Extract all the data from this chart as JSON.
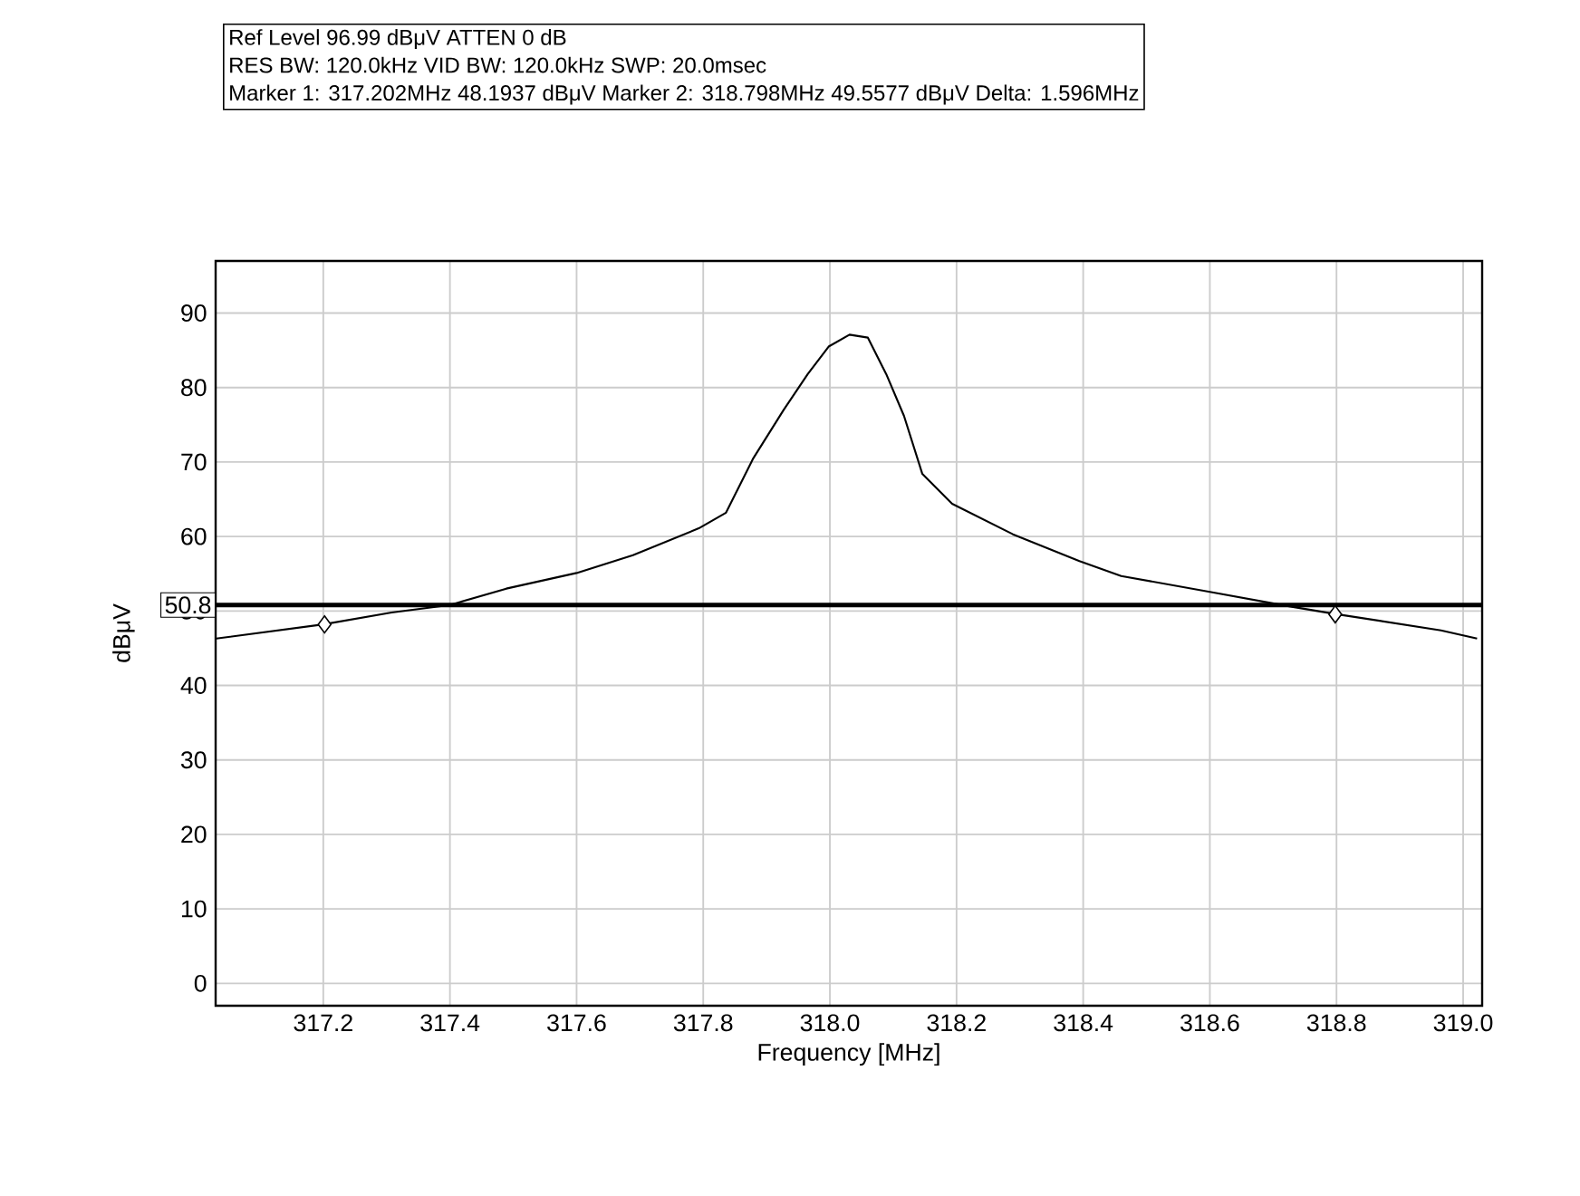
{
  "chart_data": {
    "type": "line",
    "xlabel": "Frequency [MHz]",
    "ylabel": "dBμV",
    "annotations": [
      "Ref Level 96.99 dBμV    ATTEN 0 dB",
      "RES BW: 120.0kHz  VID BW: 120.0kHz  SWP: 20.0msec",
      "Marker 1: 317.202MHz  48.1937 dBμV    Marker 2: 318.798MHz  49.5577 dBμV Delta: 1.596MHz"
    ],
    "series": [
      {
        "color": "#000000",
        "marker": "none",
        "x": [
          317.031,
          317.2,
          317.308,
          317.4,
          317.489,
          317.6,
          317.689,
          317.793,
          317.836,
          317.879,
          317.927,
          317.965,
          317.998,
          318.031,
          318.06,
          318.089,
          318.117,
          318.146,
          318.193,
          318.289,
          318.394,
          318.46,
          318.598,
          318.727,
          318.798,
          318.965,
          319.022
        ],
        "values": [
          46.3,
          48.2,
          49.8,
          50.8,
          53.0,
          55.1,
          57.5,
          61.1,
          63.2,
          70.5,
          77.0,
          81.8,
          85.5,
          87.1,
          86.7,
          81.8,
          76.2,
          68.4,
          64.4,
          60.3,
          56.7,
          54.7,
          52.6,
          50.6,
          49.6,
          47.4,
          46.3
        ]
      },
      {
        "type": "scatter",
        "color": "#000000",
        "marker": "diamond",
        "x": [
          317.202,
          318.798
        ],
        "values": [
          48.1937,
          49.5577
        ]
      }
    ],
    "ref_lines": [
      {
        "axis": "y",
        "value": 50.8,
        "label": "50.8",
        "color": "#000000"
      }
    ],
    "xlim": [
      317.03,
      319.03
    ],
    "ylim": [
      -3,
      97
    ],
    "xticks": [
      317.2,
      317.4,
      317.6,
      317.8,
      {
        "value": 318.0,
        "label": "318.0"
      },
      318.2,
      318.4,
      318.6,
      318.8,
      {
        "value": 319.0,
        "label": "319.0"
      }
    ],
    "yticks": [
      0,
      10,
      20,
      30,
      40,
      50,
      60,
      70,
      80,
      90
    ],
    "grid": true
  }
}
